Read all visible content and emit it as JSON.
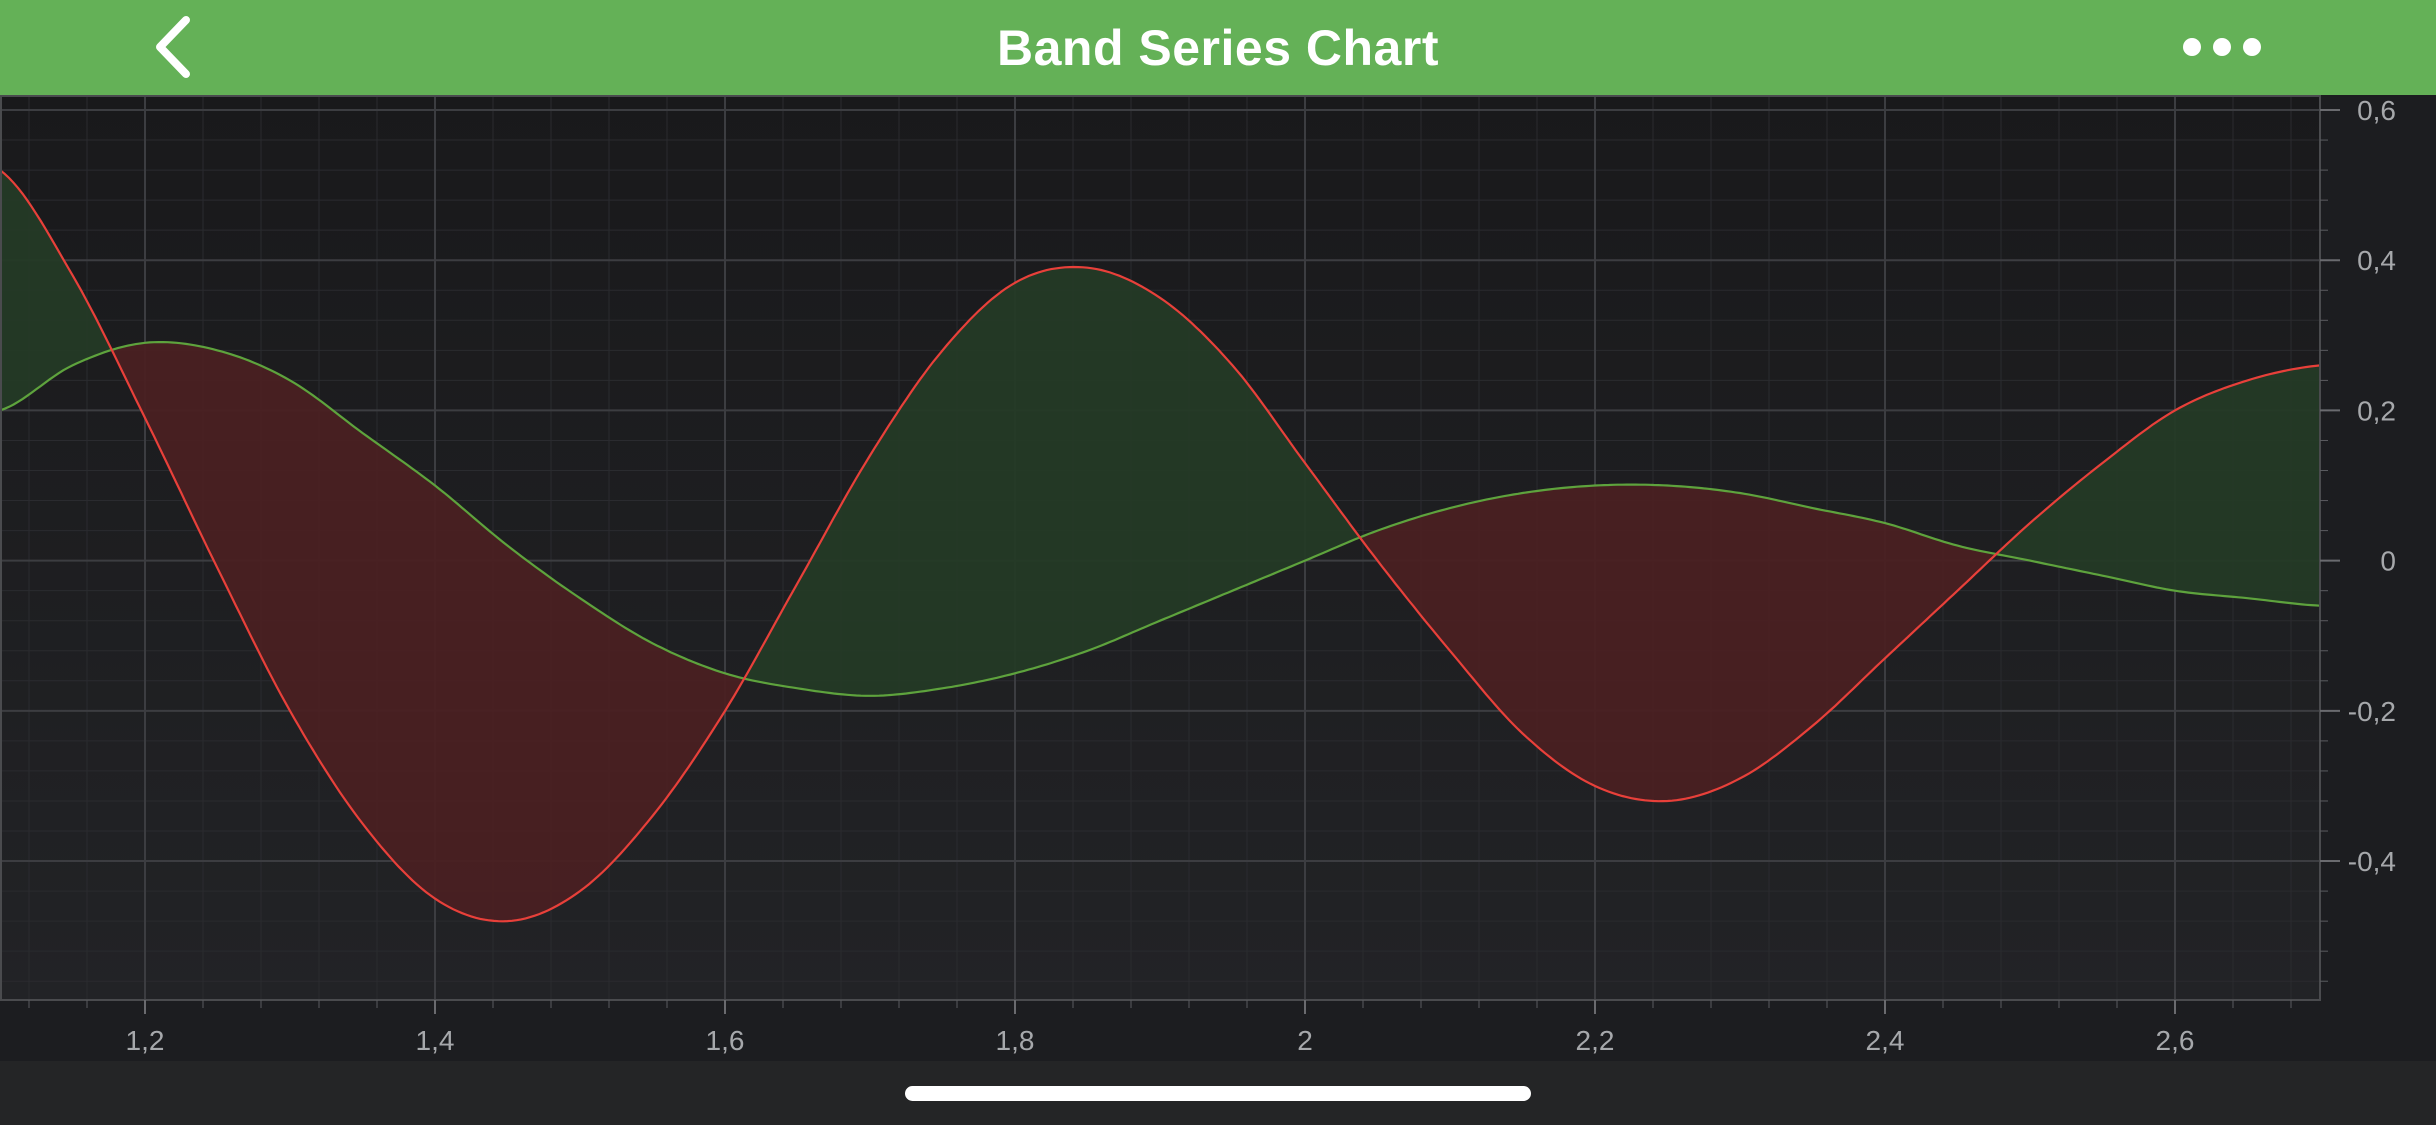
{
  "header": {
    "title": "Band Series Chart",
    "back_icon": "chevron-left-icon",
    "more_icon": "more-horizontal-icon"
  },
  "colors": {
    "header_bg": "#64b157",
    "chart_bg": "#1c1d20",
    "series_1": "#e8403a",
    "series_2": "#5ea33d",
    "fill_above": "#243a26",
    "fill_below": "#4a2022"
  },
  "chart_data": {
    "type": "area",
    "x": [
      1.1,
      1.15,
      1.2,
      1.25,
      1.3,
      1.35,
      1.4,
      1.45,
      1.5,
      1.55,
      1.6,
      1.65,
      1.7,
      1.75,
      1.8,
      1.85,
      1.9,
      1.95,
      2.0,
      2.05,
      2.1,
      2.15,
      2.2,
      2.25,
      2.3,
      2.35,
      2.4,
      2.45,
      2.5,
      2.55,
      2.6,
      2.65,
      2.7
    ],
    "series": [
      {
        "values": [
          0.52,
          0.38,
          0.19,
          -0.01,
          -0.2,
          -0.35,
          -0.45,
          -0.48,
          -0.44,
          -0.34,
          -0.2,
          -0.03,
          0.14,
          0.28,
          0.37,
          0.39,
          0.35,
          0.26,
          0.13,
          0.0,
          -0.12,
          -0.23,
          -0.3,
          -0.32,
          -0.29,
          -0.22,
          -0.13,
          -0.04,
          0.05,
          0.13,
          0.2,
          0.24,
          0.26
        ]
      },
      {
        "values": [
          0.2,
          0.26,
          0.29,
          0.28,
          0.24,
          0.17,
          0.1,
          0.02,
          -0.05,
          -0.11,
          -0.15,
          -0.17,
          -0.18,
          -0.17,
          -0.15,
          -0.12,
          -0.08,
          -0.04,
          0.0,
          0.04,
          0.07,
          0.09,
          0.1,
          0.1,
          0.09,
          0.07,
          0.05,
          0.02,
          0.0,
          -0.02,
          -0.04,
          -0.05,
          -0.06
        ]
      }
    ],
    "xlim": [
      1.1,
      2.7
    ],
    "ylim": [
      -0.585,
      0.62
    ],
    "x_ticks": [
      "1,2",
      "1,4",
      "1,6",
      "1,8",
      "2",
      "2,2",
      "2,4",
      "2,6"
    ],
    "x_tick_values": [
      1.2,
      1.4,
      1.6,
      1.8,
      2.0,
      2.2,
      2.4,
      2.6
    ],
    "y_ticks": [
      "0,6",
      "0,4",
      "0,2",
      "0",
      "-0,2",
      "-0,4"
    ],
    "y_tick_values": [
      0.6,
      0.4,
      0.2,
      0.0,
      -0.2,
      -0.4
    ],
    "y_axis_position": "right",
    "grid": true
  }
}
